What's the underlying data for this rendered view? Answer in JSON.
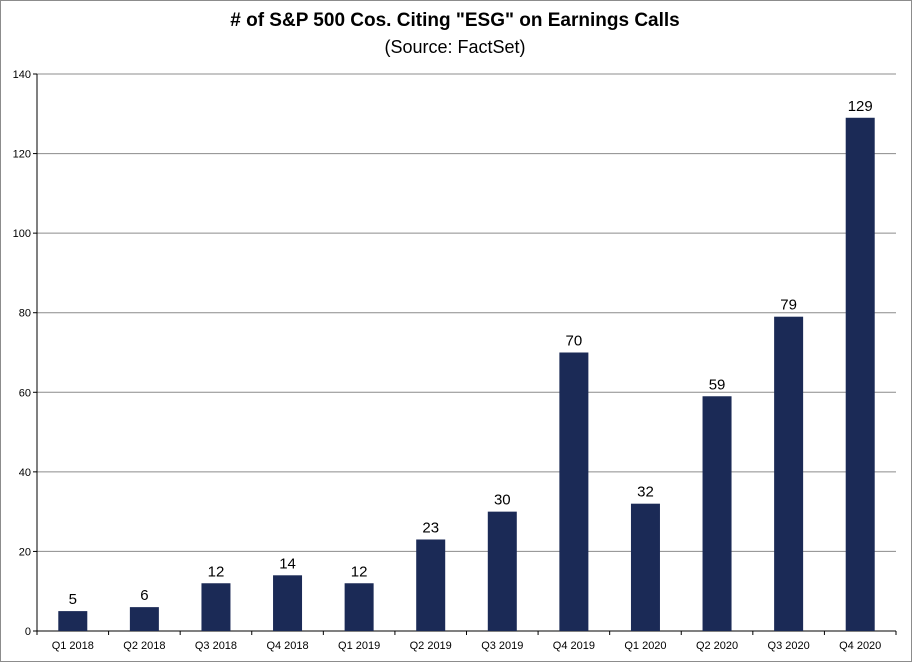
{
  "chart_data": {
    "type": "bar",
    "title": "# of S&P 500 Cos. Citing \"ESG\" on Earnings Calls",
    "subtitle": "(Source: FactSet)",
    "categories": [
      "Q1 2018",
      "Q2 2018",
      "Q3 2018",
      "Q4 2018",
      "Q1 2019",
      "Q2 2019",
      "Q3 2019",
      "Q4 2019",
      "Q1 2020",
      "Q2 2020",
      "Q3 2020",
      "Q4 2020"
    ],
    "values": [
      5,
      6,
      12,
      14,
      12,
      23,
      30,
      70,
      32,
      59,
      79,
      129
    ],
    "ylim": [
      0,
      140
    ],
    "yticks": [
      0,
      20,
      40,
      60,
      80,
      100,
      120,
      140
    ],
    "grid": true,
    "data_labels": true,
    "bar_color": "#1b2a56",
    "grid_color": "#8c8c8c"
  }
}
